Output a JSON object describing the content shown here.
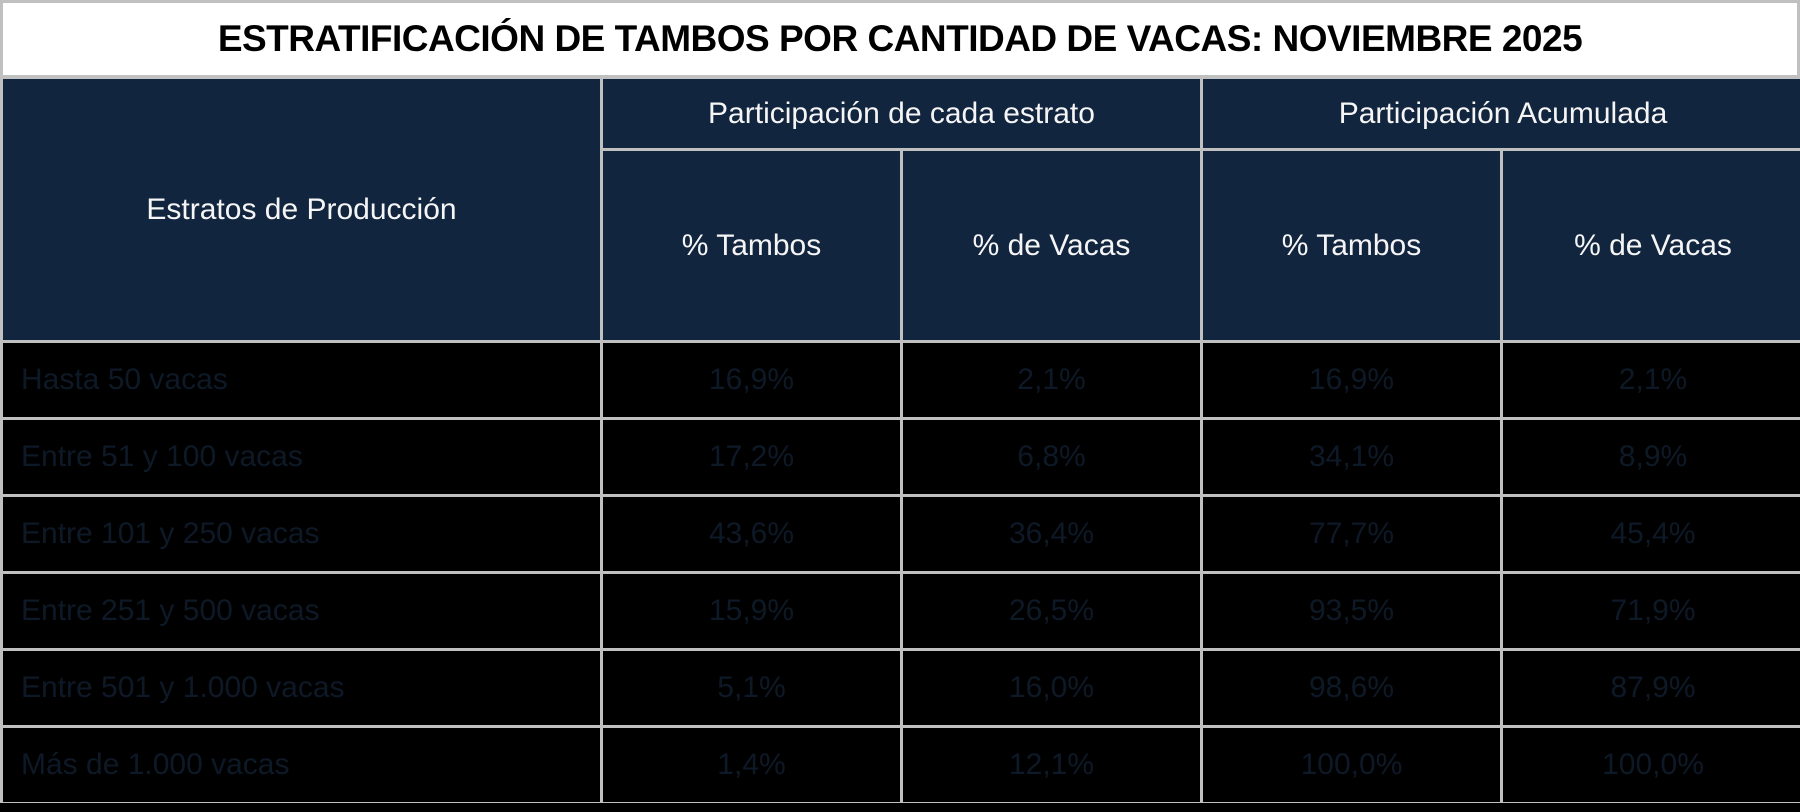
{
  "title": "ESTRATIFICACIÓN DE TAMBOS POR CANTIDAD DE VACAS: NOVIEMBRE 2025",
  "table": {
    "row_header_label": "Estratos de Producción",
    "group_headers": [
      "Participación de cada estrato",
      "Participación Acumulada"
    ],
    "sub_headers": [
      "% Tambos",
      "% de Vacas",
      "% Tambos",
      "% de Vacas"
    ],
    "rows": [
      {
        "label": "Hasta 50 vacas",
        "values": [
          "16,9%",
          "2,1%",
          "16,9%",
          "2,1%"
        ]
      },
      {
        "label": "Entre 51 y 100 vacas",
        "values": [
          "17,2%",
          "6,8%",
          "34,1%",
          "8,9%"
        ]
      },
      {
        "label": "Entre 101 y 250 vacas",
        "values": [
          "43,6%",
          "36,4%",
          "77,7%",
          "45,4%"
        ]
      },
      {
        "label": "Entre 251 y 500 vacas",
        "values": [
          "15,9%",
          "26,5%",
          "93,5%",
          "71,9%"
        ]
      },
      {
        "label": "Entre 501 y 1.000 vacas",
        "values": [
          "5,1%",
          "16,0%",
          "98,6%",
          "87,9%"
        ]
      },
      {
        "label": "Más de 1.000 vacas",
        "values": [
          "1,4%",
          "12,1%",
          "100,0%",
          "100,0%"
        ]
      }
    ]
  },
  "chart_data": {
    "type": "table",
    "title": "ESTRATIFICACIÓN DE TAMBOS POR CANTIDAD DE VACAS: NOVIEMBRE 2025",
    "column_groups": [
      {
        "label": "Participación de cada estrato",
        "columns": [
          "% Tambos",
          "% de Vacas"
        ]
      },
      {
        "label": "Participación Acumulada",
        "columns": [
          "% Tambos",
          "% de Vacas"
        ]
      }
    ],
    "columns": [
      "Estratos de Producción",
      "Participación de cada estrato — % Tambos",
      "Participación de cada estrato — % de Vacas",
      "Participación Acumulada — % Tambos",
      "Participación Acumulada — % de Vacas"
    ],
    "rows": [
      [
        "Hasta 50 vacas",
        16.9,
        2.1,
        16.9,
        2.1
      ],
      [
        "Entre 51 y 100 vacas",
        17.2,
        6.8,
        34.1,
        8.9
      ],
      [
        "Entre 101 y 250 vacas",
        43.6,
        36.4,
        77.7,
        45.4
      ],
      [
        "Entre 251 y 500 vacas",
        15.9,
        26.5,
        93.5,
        71.9
      ],
      [
        "Entre 501 y 1.000 vacas",
        5.1,
        16.0,
        98.6,
        87.9
      ],
      [
        "Más de 1.000 vacas",
        1.4,
        12.1,
        100.0,
        100.0
      ]
    ],
    "value_unit": "%"
  },
  "colors": {
    "header_bg": "#12253F",
    "header_text": "#F5F5F5",
    "row_bg": "#000000",
    "row_text": "#0E1927",
    "gridline": "#C0C0C0",
    "title_bg": "#FFFFFF",
    "title_text": "#000000"
  }
}
